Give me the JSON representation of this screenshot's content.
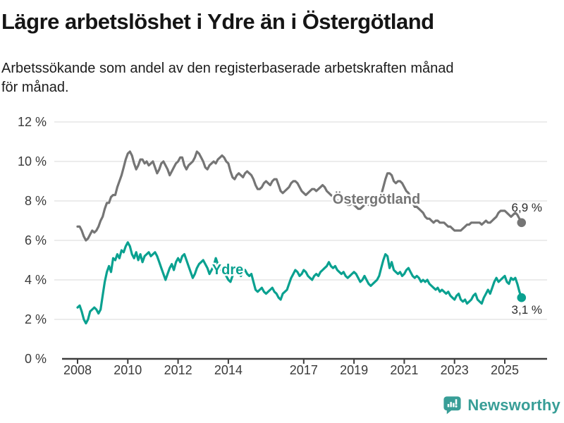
{
  "header": {
    "title": "Lägre arbetslöshet i Ydre än i Östergötland",
    "subtitle_line1": "Arbetssökande som andel av den registerbaserade arbetskraften månad",
    "subtitle_line2": "för månad."
  },
  "footer": {
    "brand": "Newsworthy",
    "logo_icon": "bar-chart-speech-bubble-icon"
  },
  "colors": {
    "ydre_teal": "#0aa190",
    "ostergotland_gray": "#757575",
    "grid": "#d9d9d9",
    "axis": "#3d3d3d",
    "text": "#1c1c1c",
    "brand_teal": "#389e97"
  },
  "chart_data": {
    "type": "line",
    "frequency": "monthly",
    "start": "2008-01",
    "end": "2025-09",
    "unit": "%",
    "ylim": [
      0,
      12
    ],
    "grid": true,
    "legend": "inline-labels",
    "y_ticks": [
      0,
      2,
      4,
      6,
      8,
      10,
      12
    ],
    "y_tick_labels": [
      "0 %",
      "2 %",
      "4 %",
      "6 %",
      "8 %",
      "10 %",
      "12 %"
    ],
    "x_ticks": [
      2008,
      2010,
      2012,
      2014,
      2017,
      2019,
      2021,
      2023,
      2025
    ],
    "x_tick_labels": [
      "2008",
      "2010",
      "2012",
      "2014",
      "2017",
      "2019",
      "2021",
      "2023",
      "2025"
    ],
    "series": [
      {
        "id": "ostergotland",
        "name": "Östergötland",
        "color": "#757575",
        "end_label": "6,9 %",
        "end_value": 6.9,
        "values": [
          6.7,
          6.7,
          6.5,
          6.2,
          6.0,
          6.1,
          6.3,
          6.5,
          6.4,
          6.5,
          6.7,
          7.0,
          7.2,
          7.6,
          7.9,
          7.9,
          8.2,
          8.3,
          8.3,
          8.7,
          9.0,
          9.3,
          9.7,
          10.1,
          10.4,
          10.5,
          10.3,
          9.9,
          9.6,
          9.8,
          10.1,
          10.1,
          9.9,
          10.0,
          9.8,
          9.9,
          10.0,
          9.7,
          9.4,
          9.6,
          9.9,
          10.0,
          9.8,
          9.6,
          9.3,
          9.5,
          9.7,
          9.9,
          10.0,
          10.2,
          10.2,
          9.8,
          9.6,
          9.8,
          9.9,
          10.0,
          10.2,
          10.5,
          10.4,
          10.2,
          10.0,
          9.7,
          9.6,
          9.8,
          9.9,
          10.0,
          9.9,
          10.1,
          10.2,
          10.3,
          10.2,
          10.0,
          9.9,
          9.5,
          9.2,
          9.1,
          9.3,
          9.4,
          9.3,
          9.2,
          9.4,
          9.5,
          9.4,
          9.3,
          9.1,
          8.8,
          8.6,
          8.6,
          8.7,
          8.9,
          9.0,
          8.9,
          8.8,
          9.0,
          9.1,
          9.1,
          8.8,
          8.5,
          8.4,
          8.5,
          8.6,
          8.7,
          8.9,
          9.0,
          9.0,
          8.9,
          8.7,
          8.5,
          8.4,
          8.3,
          8.4,
          8.5,
          8.6,
          8.6,
          8.5,
          8.6,
          8.7,
          8.8,
          8.7,
          8.5,
          8.4,
          8.3,
          8.2,
          8.1,
          8.0,
          8.0,
          8.1,
          8.0,
          7.9,
          7.8,
          7.8,
          7.9,
          7.8,
          7.7,
          7.6,
          7.6,
          7.7,
          7.8,
          7.9,
          7.8,
          7.8,
          7.9,
          8.0,
          8.0,
          8.1,
          8.3,
          8.7,
          9.1,
          9.4,
          9.4,
          9.3,
          9.0,
          8.9,
          9.0,
          9.0,
          8.9,
          8.7,
          8.5,
          8.4,
          8.2,
          7.9,
          7.7,
          7.7,
          7.6,
          7.5,
          7.4,
          7.2,
          7.1,
          7.1,
          7.0,
          6.9,
          7.0,
          7.0,
          6.9,
          6.9,
          6.9,
          6.8,
          6.7,
          6.7,
          6.6,
          6.5,
          6.5,
          6.5,
          6.5,
          6.6,
          6.7,
          6.8,
          6.8,
          6.9,
          6.9,
          6.9,
          6.9,
          6.9,
          6.8,
          6.9,
          7.0,
          6.9,
          6.9,
          7.0,
          7.1,
          7.2,
          7.4,
          7.5,
          7.5,
          7.5,
          7.4,
          7.3,
          7.2,
          7.3,
          7.4,
          7.3,
          7.1,
          6.9
        ]
      },
      {
        "id": "ydre",
        "name": "Ydre",
        "color": "#0aa190",
        "end_label": "3,1 %",
        "end_value": 3.1,
        "values": [
          2.6,
          2.7,
          2.4,
          2.0,
          1.8,
          2.0,
          2.4,
          2.5,
          2.6,
          2.5,
          2.3,
          2.5,
          3.2,
          3.9,
          4.4,
          4.7,
          4.4,
          5.1,
          5.0,
          5.3,
          5.1,
          5.5,
          5.4,
          5.7,
          5.9,
          5.7,
          5.3,
          5.1,
          5.4,
          5.0,
          5.3,
          4.9,
          5.2,
          5.3,
          5.4,
          5.2,
          5.3,
          5.4,
          5.2,
          4.9,
          4.6,
          4.3,
          4.0,
          4.3,
          4.6,
          4.8,
          4.5,
          4.9,
          5.1,
          4.9,
          5.2,
          5.3,
          5.0,
          4.7,
          4.4,
          4.1,
          4.3,
          4.6,
          4.8,
          4.9,
          5.0,
          4.8,
          4.6,
          4.3,
          4.5,
          4.7,
          5.1,
          4.8,
          4.6,
          4.4,
          4.3,
          4.2,
          4.0,
          3.9,
          4.2,
          4.4,
          4.6,
          4.3,
          4.2,
          4.4,
          4.5,
          4.3,
          4.2,
          4.3,
          3.9,
          3.5,
          3.4,
          3.5,
          3.6,
          3.4,
          3.3,
          3.4,
          3.5,
          3.6,
          3.4,
          3.3,
          3.1,
          3.0,
          3.3,
          3.4,
          3.5,
          3.8,
          4.1,
          4.3,
          4.5,
          4.4,
          4.2,
          4.3,
          4.5,
          4.4,
          4.2,
          4.1,
          4.0,
          4.2,
          4.3,
          4.2,
          4.4,
          4.5,
          4.6,
          4.7,
          4.9,
          4.7,
          4.6,
          4.7,
          4.5,
          4.4,
          4.3,
          4.4,
          4.2,
          4.1,
          4.2,
          4.3,
          4.4,
          4.3,
          4.1,
          3.9,
          4.0,
          4.2,
          4.0,
          3.8,
          3.7,
          3.8,
          3.9,
          4.0,
          4.2,
          4.6,
          5.0,
          5.3,
          5.2,
          4.6,
          4.9,
          4.5,
          4.4,
          4.3,
          4.4,
          4.2,
          4.3,
          4.5,
          4.6,
          4.4,
          4.2,
          4.1,
          4.2,
          4.1,
          3.9,
          4.0,
          3.9,
          4.0,
          3.8,
          3.7,
          3.6,
          3.5,
          3.6,
          3.4,
          3.5,
          3.4,
          3.3,
          3.4,
          3.2,
          3.1,
          3.0,
          3.2,
          3.3,
          3.0,
          2.9,
          3.0,
          2.8,
          2.9,
          3.0,
          3.2,
          3.3,
          3.0,
          2.9,
          2.8,
          3.1,
          3.3,
          3.5,
          3.3,
          3.6,
          3.9,
          4.1,
          3.9,
          4.0,
          4.1,
          4.2,
          3.9,
          3.8,
          4.1,
          4.0,
          4.1,
          3.8,
          3.4,
          3.1
        ]
      }
    ]
  }
}
